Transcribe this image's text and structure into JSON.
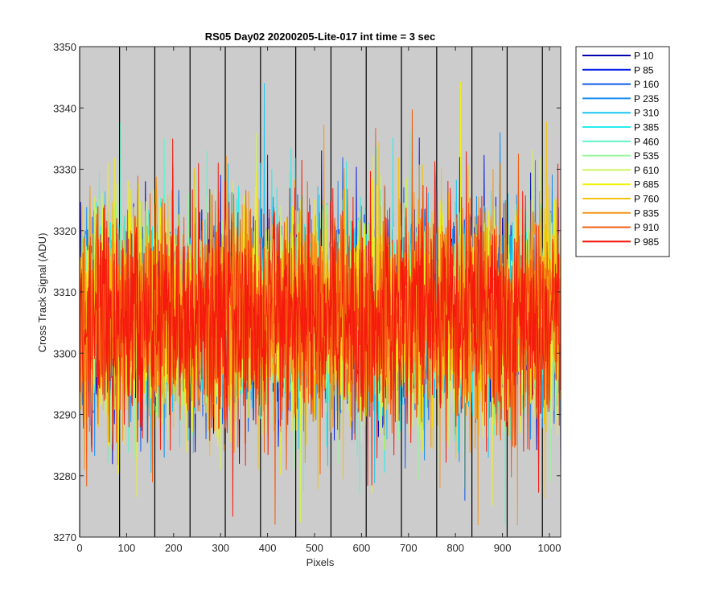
{
  "chart_data": {
    "type": "line",
    "title": "RS05 Day02 20200205-Lite-017 int time = 3 sec",
    "xlabel": "Pixels",
    "ylabel": "Cross Track Signal (ADU)",
    "xlim": [
      0,
      1024
    ],
    "ylim": [
      3270,
      3350
    ],
    "xticks": [
      0,
      100,
      200,
      300,
      400,
      500,
      600,
      700,
      800,
      900,
      1000
    ],
    "yticks": [
      3270,
      3280,
      3290,
      3300,
      3310,
      3320,
      3330,
      3340,
      3350
    ],
    "background": "#cccccc",
    "legend_position": "outside-top-right",
    "vertical_lines_x": [
      0,
      85,
      160,
      235,
      310,
      385,
      460,
      535,
      610,
      685,
      760,
      835,
      910,
      985
    ],
    "noise_model": {
      "mean": 3306,
      "band_sd": 7.5,
      "points_per_series": 1024
    },
    "series": [
      {
        "name": "P 10",
        "color": "#0000b3",
        "extremes": [
          [
            140,
            3328
          ],
          [
            515,
            3333
          ],
          [
            340,
            3282
          ],
          [
            1024,
            3280
          ]
        ]
      },
      {
        "name": "P 85",
        "color": "#0019e6",
        "extremes": [
          [
            300,
            3329
          ],
          [
            470,
            3283
          ],
          [
            95,
            3289
          ]
        ]
      },
      {
        "name": "P 160",
        "color": "#0d5ae6",
        "extremes": [
          [
            820,
            3276
          ],
          [
            130,
            3284
          ],
          [
            690,
            3327
          ]
        ]
      },
      {
        "name": "P 235",
        "color": "#1a8ef0",
        "extremes": [
          [
            650,
            3327
          ],
          [
            180,
            3283
          ],
          [
            960,
            3286
          ]
        ]
      },
      {
        "name": "P 310",
        "color": "#1ac6f2",
        "extremes": [
          [
            393,
            3344
          ],
          [
            385,
            3331
          ],
          [
            870,
            3283
          ]
        ]
      },
      {
        "name": "P 385",
        "color": "#27eded",
        "extremes": [
          [
            420,
            3327
          ],
          [
            240,
            3289
          ],
          [
            560,
            3325
          ]
        ]
      },
      {
        "name": "P 460",
        "color": "#61f2c9",
        "extremes": [
          [
            906,
            3272
          ],
          [
            596,
            3277
          ],
          [
            180,
            3335
          ]
        ]
      },
      {
        "name": "P 535",
        "color": "#99f59c",
        "extremes": [
          [
            250,
            3329
          ],
          [
            780,
            3285
          ],
          [
            460,
            3292
          ]
        ]
      },
      {
        "name": "P 610",
        "color": "#ccf55c",
        "extremes": [
          [
            980,
            3332
          ],
          [
            300,
            3281
          ],
          [
            640,
            3287
          ]
        ]
      },
      {
        "name": "P 685",
        "color": "#f2f20d",
        "extremes": [
          [
            60,
            3331
          ],
          [
            720,
            3288
          ],
          [
            500,
            3325
          ]
        ]
      },
      {
        "name": "P 760",
        "color": "#f2c40f",
        "extremes": [
          [
            380,
            3281
          ],
          [
            860,
            3323
          ],
          [
            40,
            3288
          ]
        ]
      },
      {
        "name": "P 835",
        "color": "#f5951a",
        "extremes": [
          [
            767,
            3278
          ],
          [
            880,
            3330
          ],
          [
            10,
            3281
          ]
        ]
      },
      {
        "name": "P 910",
        "color": "#f25c0f",
        "extremes": [
          [
            440,
            3281
          ],
          [
            150,
            3326
          ],
          [
            600,
            3324
          ]
        ]
      },
      {
        "name": "P 985",
        "color": "#f51a0d",
        "extremes": [
          [
            295,
            3331
          ],
          [
            25,
            3285
          ],
          [
            945,
            3284
          ]
        ]
      }
    ]
  }
}
